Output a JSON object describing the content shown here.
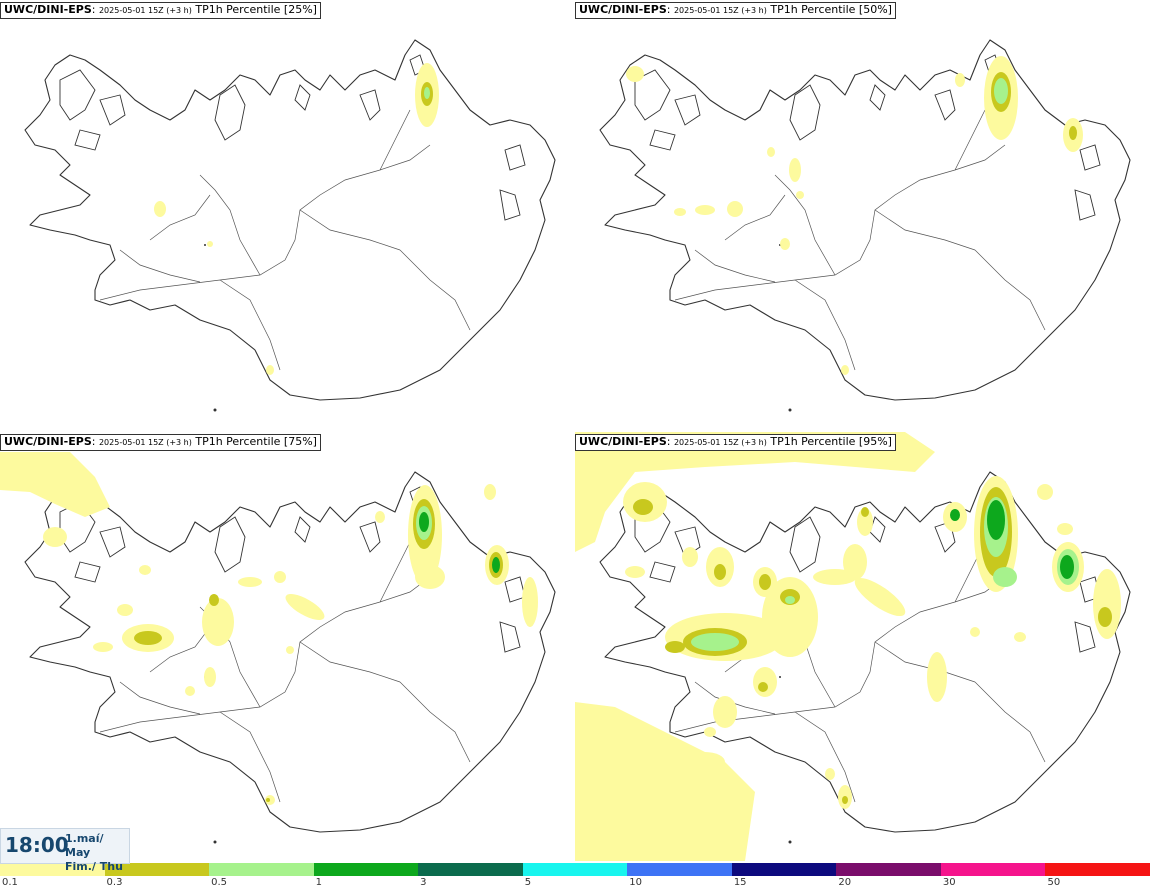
{
  "panels": [
    {
      "model": "UWC/DINI-EPS",
      "run": "2025-05-01 15Z (+3 h)",
      "product": "TP1h Percentile [25%]"
    },
    {
      "model": "UWC/DINI-EPS",
      "run": "2025-05-01 15Z (+3 h)",
      "product": "TP1h Percentile [50%]"
    },
    {
      "model": "UWC/DINI-EPS",
      "run": "2025-05-01 15Z (+3 h)",
      "product": "TP1h Percentile [75%]"
    },
    {
      "model": "UWC/DINI-EPS",
      "run": "2025-05-01 15Z (+3 h)",
      "product": "TP1h Percentile [95%]"
    }
  ],
  "valid_time": {
    "time": "18:00",
    "date_line1": "1.maí/ May",
    "date_line2": "Fim./ Thu"
  },
  "legend": {
    "colors": [
      "#fdfa9e",
      "#c8c81e",
      "#a6f28c",
      "#0da81d",
      "#0b6b4d",
      "#18f5ee",
      "#3d73f5",
      "#0d0a7e",
      "#7a0d6b",
      "#f5148c",
      "#f51414"
    ],
    "ticks": [
      "0.1",
      "0.3",
      "0.5",
      "1",
      "3",
      "5",
      "10",
      "15",
      "20",
      "30",
      "50"
    ]
  },
  "colors": {
    "yellow": "#fdfa9e",
    "olive": "#c8c81e",
    "lightgreen": "#a6f28c",
    "green": "#0da81d",
    "coast": "#333333"
  }
}
